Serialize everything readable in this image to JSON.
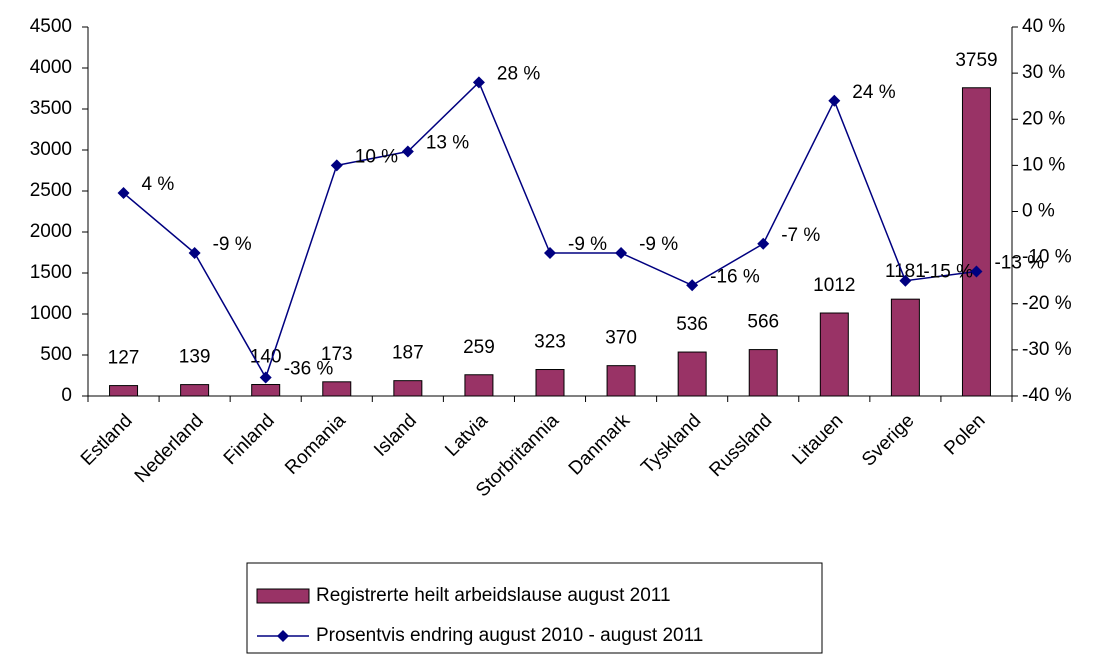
{
  "chart_data": {
    "type": "bar-line",
    "categories": [
      "Estland",
      "Nederland",
      "Finland",
      "Romania",
      "Island",
      "Latvia",
      "Storbritannia",
      "Danmark",
      "Tyskland",
      "Russland",
      "Litauen",
      "Sverige",
      "Polen"
    ],
    "series": [
      {
        "name": "Registrerte heilt arbeidslause august 2011",
        "color": "#993366",
        "type": "bar",
        "values": [
          127,
          139,
          140,
          173,
          187,
          259,
          323,
          370,
          536,
          566,
          1012,
          1181,
          3759
        ]
      },
      {
        "name": "Prosentvis endring august 2010 - august 2011",
        "color": "#000080",
        "type": "line",
        "axis": "y2",
        "values": [
          4,
          -9,
          -36,
          10,
          13,
          28,
          -9,
          -9,
          -16,
          -7,
          24,
          -15,
          -13
        ],
        "value_labels": [
          "4 %",
          "-9 %",
          "-36 %",
          "10 %",
          "13 %",
          "28 %",
          "-9 %",
          "-9 %",
          "-16 %",
          "-7 %",
          "24 %",
          "-15 %",
          "-13 %"
        ]
      }
    ],
    "ylim": [
      0,
      4500
    ],
    "yticks": [
      0,
      500,
      1000,
      1500,
      2000,
      2500,
      3000,
      3500,
      4000,
      4500
    ],
    "y2lim": [
      -40,
      40
    ],
    "y2ticks": [
      {
        "value": -40,
        "label": "-40 %"
      },
      {
        "value": -30,
        "label": "-30 %"
      },
      {
        "value": -20,
        "label": "-20 %"
      },
      {
        "value": -10,
        "label": "-10 %"
      },
      {
        "value": 0,
        "label": "0 %"
      },
      {
        "value": 10,
        "label": "10 %"
      },
      {
        "value": 20,
        "label": "20 %"
      },
      {
        "value": 30,
        "label": "30 %"
      },
      {
        "value": 40,
        "label": "40 %"
      }
    ],
    "legend": "bottom"
  }
}
